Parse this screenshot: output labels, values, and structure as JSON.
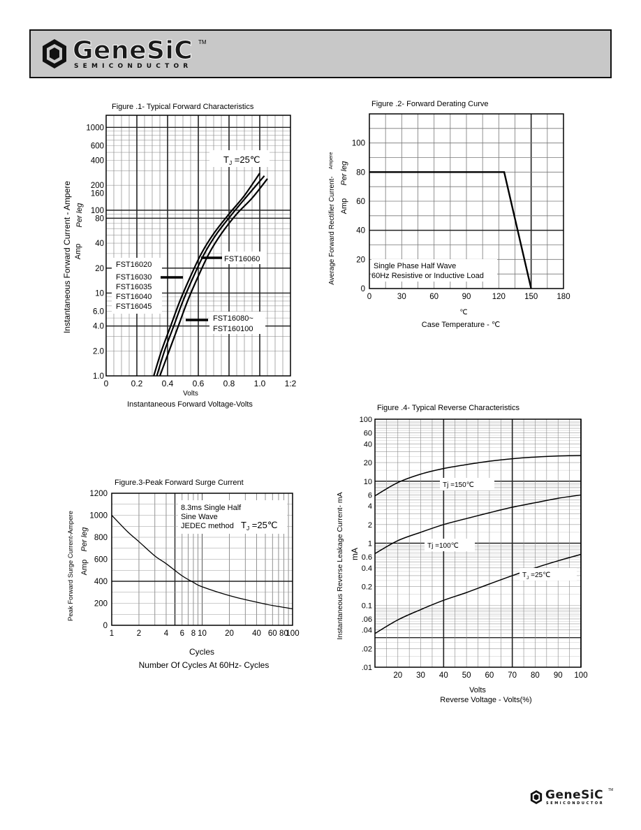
{
  "header": {
    "brand": "GeneSiC",
    "tm": "TM",
    "subtitle": "SEMICONDUCTOR"
  },
  "footer_logo": {
    "brand": "GeneSiC",
    "tm": "TM",
    "subtitle": "SEMICONDUCTOR"
  },
  "colors": {
    "header_bg": "#c8c8c8",
    "ink": "#000000",
    "grid_minor": "#9a9a9a"
  },
  "chart_data": [
    {
      "id": "fig1",
      "type": "line",
      "title": "Figure .1- Typical Forward Characteristics",
      "xlabel_top": "Volts",
      "xlabel": "Instantaneous Forward Voltage-Volts",
      "ylabel": "Instantaneous Forward Current - Ampere",
      "ylabel_unit": "Amp",
      "ylabel_per": "Per leg",
      "yscale": "log",
      "xlim": [
        0,
        1.2
      ],
      "ylim": [
        1,
        1400
      ],
      "xticks": [
        0,
        0.2,
        0.4,
        0.6,
        0.8,
        1.0,
        1.2
      ],
      "xtick_labels": [
        "0",
        "0.2",
        "0.4",
        "0.6",
        "0.8",
        "1.0",
        "1:2"
      ],
      "yticks": [
        1,
        2,
        4,
        6,
        10,
        20,
        40,
        80,
        100,
        160,
        200,
        400,
        600,
        1000
      ],
      "ytick_labels": [
        "1.0",
        "2.0",
        "4.0",
        "6.0",
        "10",
        "20",
        "40",
        "80",
        "100",
        "160",
        "200",
        "400",
        "600",
        "1000"
      ],
      "annotation": {
        "t": "T",
        "sub": "J",
        "rest": " =25℃"
      },
      "legend_left": [
        "FST16020",
        "FST16030",
        "FST16035",
        "FST16040",
        "FST16045"
      ],
      "legend_mid": "FST16060",
      "legend_right": [
        "FST16080~",
        "FST160100"
      ],
      "series": [
        {
          "x": [
            0.31,
            0.36,
            0.42,
            0.48,
            0.55,
            0.62,
            0.7,
            0.8,
            0.9,
            1.0
          ],
          "y": [
            1,
            2,
            4,
            8,
            16,
            30,
            52,
            90,
            150,
            280
          ]
        },
        {
          "x": [
            0.33,
            0.38,
            0.44,
            0.5,
            0.57,
            0.64,
            0.72,
            0.82,
            0.92,
            1.03
          ],
          "y": [
            1,
            2,
            4,
            8,
            16,
            30,
            52,
            90,
            150,
            260
          ]
        },
        {
          "x": [
            0.35,
            0.41,
            0.47,
            0.53,
            0.6,
            0.67,
            0.75,
            0.85,
            0.95,
            1.05
          ],
          "y": [
            1,
            2,
            4,
            8,
            16,
            30,
            52,
            90,
            140,
            240
          ]
        }
      ]
    },
    {
      "id": "fig2",
      "type": "line",
      "title": "Figure .2- Forward Derating Curve",
      "xlabel_unit": "℃",
      "xlabel": "Case Temperature -  ℃",
      "ylabel": "Average Forward Rectifier Current-",
      "ylabel_small": "Ampere",
      "ylabel_unit": "Amp",
      "ylabel_per": "Per leg",
      "xlim": [
        0,
        180
      ],
      "ylim": [
        0,
        120
      ],
      "xticks": [
        0,
        30,
        60,
        90,
        120,
        150,
        180
      ],
      "xtick_labels": [
        "0",
        "30",
        "60",
        "90",
        "120",
        "150",
        "180"
      ],
      "yticks": [
        0,
        20,
        40,
        60,
        80,
        100
      ],
      "ytick_labels": [
        "0",
        "20",
        "40",
        "60",
        "80",
        "100"
      ],
      "notes": [
        "Single Phase  Half Wave",
        "60Hz  Resistive or Inductive Load"
      ],
      "series": [
        {
          "x": [
            0,
            125,
            150
          ],
          "y": [
            80,
            80,
            0
          ]
        }
      ]
    },
    {
      "id": "fig3",
      "type": "line",
      "title": "Figure.3-Peak Forward Surge Current",
      "xlabel_top": "Cycles",
      "xlabel": "Number Of Cycles At 60Hz- Cycles",
      "ylabel": "Peak Forward Surge Current-Ampere",
      "ylabel_unit": "Amp",
      "ylabel_per": "Per leg",
      "xscale": "log",
      "xlim": [
        1,
        100
      ],
      "ylim": [
        0,
        1200
      ],
      "xticks": [
        1,
        2,
        4,
        6,
        8,
        10,
        20,
        40,
        60,
        80,
        100
      ],
      "xtick_labels": [
        "1",
        "2",
        "4",
        "6",
        "8",
        "10",
        "20",
        "40",
        "60",
        "80",
        "100"
      ],
      "yticks": [
        0,
        200,
        400,
        600,
        800,
        1000,
        1200
      ],
      "ytick_labels": [
        "0",
        "200",
        "400",
        "600",
        "800",
        "1000",
        "1200"
      ],
      "notes": [
        "8.3ms Single Half",
        "Sine Wave",
        "JEDEC method"
      ],
      "annotation": {
        "t": "T",
        "sub": "J",
        "rest": " =25℃"
      },
      "series": [
        {
          "x": [
            1,
            1.5,
            2,
            3,
            4,
            6,
            8,
            10,
            20,
            40,
            60,
            100
          ],
          "y": [
            1000,
            850,
            760,
            630,
            560,
            450,
            390,
            350,
            270,
            210,
            180,
            150
          ]
        }
      ]
    },
    {
      "id": "fig4",
      "type": "line",
      "title": "Figure .4- Typical Reverse Characteristics",
      "xlabel_top": "Volts",
      "xlabel": "Reverse   Voltage  - Volts(%)",
      "ylabel": "Instantaneous Reverse Leakage Current-  mA",
      "ylabel_unit": "mA",
      "yscale": "log",
      "xlim": [
        10,
        100
      ],
      "ylim": [
        0.01,
        100
      ],
      "xticks": [
        20,
        30,
        40,
        50,
        60,
        70,
        80,
        90,
        100
      ],
      "xtick_labels": [
        "20",
        "30",
        "40",
        "50",
        "60",
        "70",
        "80",
        "90",
        "100"
      ],
      "yticks": [
        0.01,
        0.02,
        0.04,
        0.06,
        0.1,
        0.2,
        0.4,
        0.6,
        1,
        2,
        4,
        6,
        10,
        20,
        40,
        60,
        100
      ],
      "ytick_labels": [
        ".01",
        ".02",
        ".04",
        ".06",
        "0.1",
        "0.2",
        "0.4",
        "0.6",
        "1",
        "2",
        "4",
        "6",
        "10",
        "20",
        "40",
        "60",
        "100"
      ],
      "labels": [
        {
          "t": "Tj",
          "rest": " =150℃"
        },
        {
          "t": "Tj",
          "rest": " =100℃"
        },
        {
          "t": "T",
          "sub": "J",
          "rest": " =25℃"
        }
      ],
      "series": [
        {
          "x": [
            10,
            20,
            30,
            40,
            50,
            60,
            70,
            80,
            90,
            100
          ],
          "y": [
            5.8,
            9.5,
            13,
            16,
            18.5,
            21,
            23,
            24.5,
            25.5,
            26
          ]
        },
        {
          "x": [
            10,
            20,
            30,
            40,
            50,
            60,
            70,
            80,
            90,
            100
          ],
          "y": [
            0.68,
            1.1,
            1.5,
            2,
            2.5,
            3.1,
            3.8,
            4.5,
            5.3,
            6
          ]
        },
        {
          "x": [
            10,
            20,
            30,
            40,
            50,
            60,
            70,
            80,
            90,
            100
          ],
          "y": [
            0.035,
            0.058,
            0.085,
            0.12,
            0.16,
            0.22,
            0.3,
            0.4,
            0.52,
            0.66
          ]
        }
      ]
    }
  ]
}
